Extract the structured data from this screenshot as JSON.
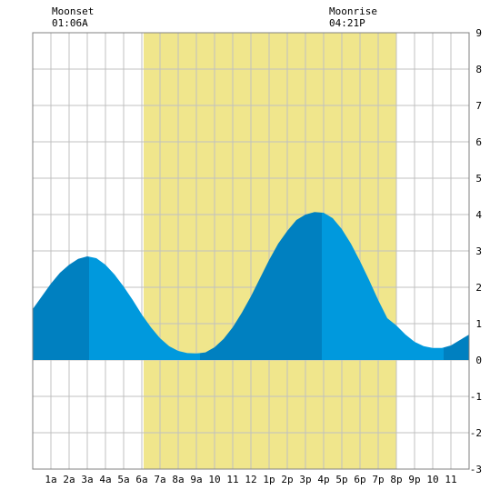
{
  "chart_data": {
    "type": "area",
    "title": "",
    "xlabel": "",
    "ylabel": "",
    "x_tick_labels": [
      "1a",
      "2a",
      "3a",
      "4a",
      "5a",
      "6a",
      "7a",
      "8a",
      "9a",
      "10",
      "11",
      "12",
      "1p",
      "2p",
      "3p",
      "4p",
      "5p",
      "6p",
      "7p",
      "8p",
      "9p",
      "10",
      "11"
    ],
    "xlim": [
      0,
      24
    ],
    "ylim": [
      -3,
      9
    ],
    "y_ticks": [
      -3,
      -2,
      -1,
      0,
      1,
      2,
      3,
      4,
      5,
      6,
      7,
      8,
      9
    ],
    "grid": true,
    "daylight_hours": [
      6.1,
      20.0
    ],
    "annotations": [
      {
        "label": "Moonset",
        "time": "01:06A",
        "hour": 1.1
      },
      {
        "label": "Moonrise",
        "time": "04:21P",
        "hour": 16.35
      }
    ],
    "tide_extremes": [
      {
        "hour": 3.1,
        "height": 2.85,
        "type": "high"
      },
      {
        "hour": 9.2,
        "height": 0.18,
        "type": "low"
      },
      {
        "hour": 15.9,
        "height": 4.07,
        "type": "high"
      },
      {
        "hour": 22.6,
        "height": 0.33,
        "type": "low"
      }
    ],
    "series": [
      {
        "values": [
          [
            0.0,
            1.4
          ],
          [
            0.5,
            1.75
          ],
          [
            1.0,
            2.1
          ],
          [
            1.5,
            2.4
          ],
          [
            2.0,
            2.62
          ],
          [
            2.5,
            2.78
          ],
          [
            3.0,
            2.85
          ],
          [
            3.5,
            2.8
          ],
          [
            4.0,
            2.62
          ],
          [
            4.5,
            2.35
          ],
          [
            5.0,
            2.02
          ],
          [
            5.5,
            1.65
          ],
          [
            6.0,
            1.25
          ],
          [
            6.5,
            0.9
          ],
          [
            7.0,
            0.6
          ],
          [
            7.5,
            0.38
          ],
          [
            8.0,
            0.25
          ],
          [
            8.5,
            0.19
          ],
          [
            9.0,
            0.18
          ],
          [
            9.5,
            0.21
          ],
          [
            10.0,
            0.35
          ],
          [
            10.5,
            0.58
          ],
          [
            11.0,
            0.9
          ],
          [
            11.5,
            1.3
          ],
          [
            12.0,
            1.75
          ],
          [
            12.5,
            2.25
          ],
          [
            13.0,
            2.75
          ],
          [
            13.5,
            3.2
          ],
          [
            14.0,
            3.55
          ],
          [
            14.5,
            3.85
          ],
          [
            15.0,
            4.0
          ],
          [
            15.5,
            4.07
          ],
          [
            16.0,
            4.05
          ],
          [
            16.5,
            3.9
          ],
          [
            17.0,
            3.6
          ],
          [
            17.5,
            3.2
          ],
          [
            18.0,
            2.72
          ],
          [
            18.5,
            2.2
          ],
          [
            19.0,
            1.65
          ],
          [
            19.5,
            1.15
          ],
          [
            20.0,
            0.95
          ],
          [
            20.5,
            0.7
          ],
          [
            21.0,
            0.5
          ],
          [
            21.5,
            0.38
          ],
          [
            22.0,
            0.33
          ],
          [
            22.5,
            0.33
          ],
          [
            23.0,
            0.4
          ],
          [
            23.5,
            0.55
          ],
          [
            24.0,
            0.7
          ]
        ]
      }
    ],
    "colors": {
      "daylight": "#f0e68c",
      "tide_rising": "#0080c0",
      "tide_falling": "#0099dd",
      "grid": "#c0c0c0",
      "background": "#ffffff"
    }
  }
}
